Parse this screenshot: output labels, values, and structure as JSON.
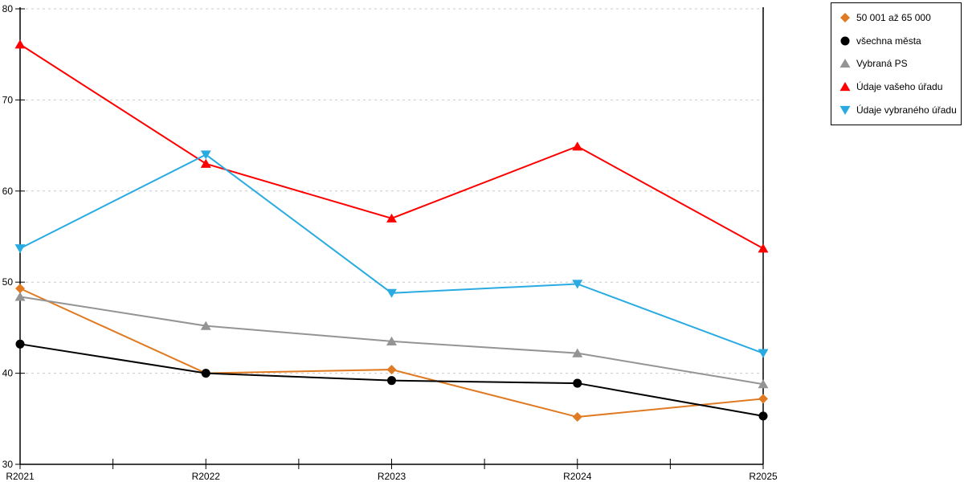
{
  "chart_data": {
    "type": "line",
    "title": "",
    "xlabel": "",
    "ylabel": "",
    "categories": [
      "R2021",
      "R2022",
      "R2023",
      "R2024",
      "R2025"
    ],
    "series": [
      {
        "name": "50 001 až 65 000",
        "marker": "diamond",
        "color": "#E07B23",
        "values": [
          49.3,
          40.0,
          40.4,
          35.2,
          37.2
        ]
      },
      {
        "name": "všechna města",
        "marker": "circle",
        "color": "#000000",
        "values": [
          43.2,
          40.0,
          39.2,
          38.9,
          35.3
        ]
      },
      {
        "name": "Vybraná PS",
        "marker": "triangle-up",
        "color": "#949494",
        "values": [
          48.4,
          45.2,
          43.5,
          42.2,
          38.8
        ]
      },
      {
        "name": "Údaje vašeho úřadu",
        "marker": "triangle-up",
        "color": "#FE0000",
        "values": [
          76.1,
          63.0,
          57.0,
          64.9,
          53.7
        ]
      },
      {
        "name": "Údaje vybraného úřadu",
        "marker": "triangle-down",
        "color": "#29ABE2",
        "values": [
          53.7,
          64.0,
          48.8,
          49.8,
          42.2
        ]
      }
    ],
    "ylim": [
      30,
      80
    ],
    "ytick_step": 10,
    "yticks": [
      "30",
      "40",
      "50",
      "60",
      "70",
      "80"
    ],
    "grid": "horizontal dashed, minor x ticks at midpoints, right border line, no top border",
    "legend_position": "outside top-right"
  },
  "colors": {
    "background": "#FFFFFF",
    "axis": "#000000",
    "grid": "#C9C9C9",
    "tick_label": "#000000",
    "legend_border": "#000000"
  }
}
